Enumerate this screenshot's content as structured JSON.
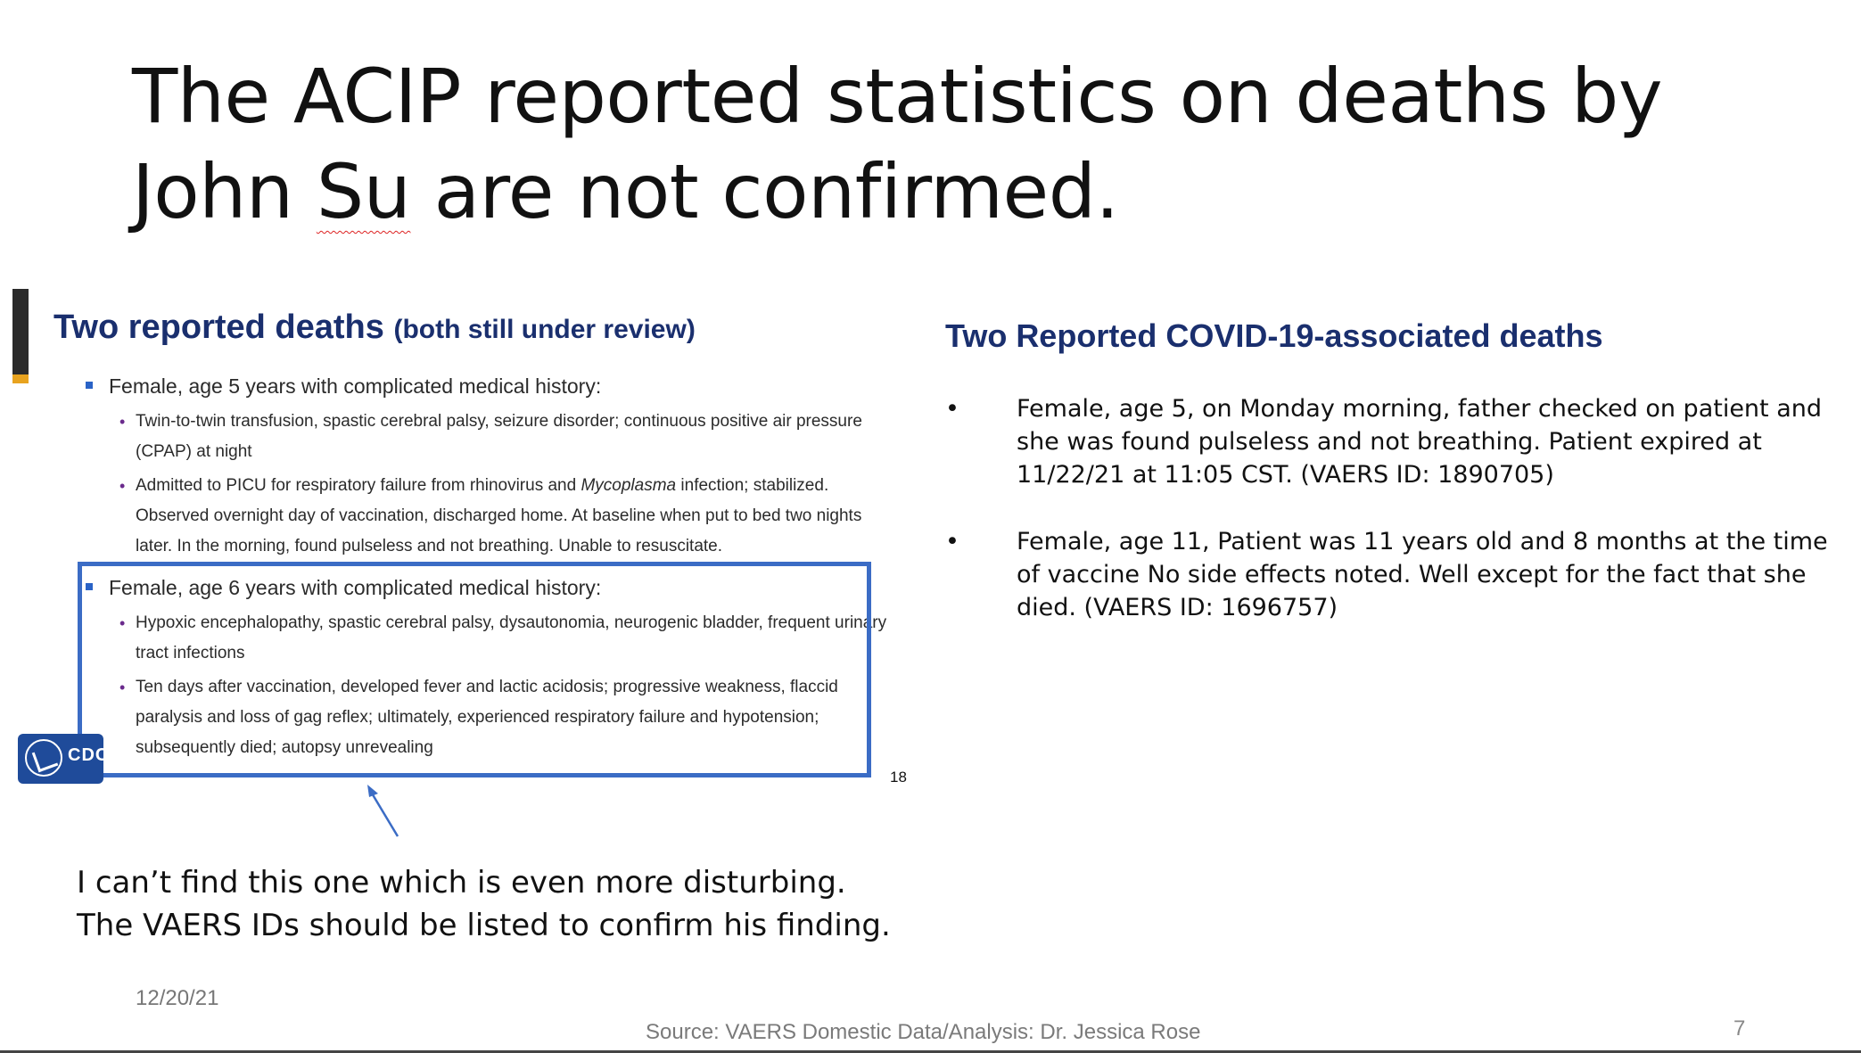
{
  "title": {
    "line1": "The ACIP reported statistics on deaths by",
    "line2_before": "John ",
    "line2_flagged": "Su",
    "line2_after": " are not confirmed."
  },
  "left_slide": {
    "heading_main": "Two reported deaths",
    "heading_sub": "(both still under review)",
    "case1": {
      "head": "Female, age 5 years with complicated medical history:",
      "item1": "Twin-to-twin transfusion, spastic cerebral palsy, seizure disorder; continuous positive air pressure (CPAP) at night",
      "item2_before": "Admitted to PICU for respiratory failure from rhinovirus and ",
      "item2_italic": "Mycoplasma",
      "item2_after": " infection; stabilized. Observed overnight day of vaccination, discharged home. At baseline when put to bed two nights later. In the morning, found pulseless and not breathing. Unable to resuscitate."
    },
    "case2": {
      "head": "Female, age 6 years with complicated medical history:",
      "item1": "Hypoxic encephalopathy, spastic cerebral palsy, dysautonomia, neurogenic bladder, frequent urinary tract infections",
      "item2": "Ten days after vaccination, developed fever and lactic acidosis; progressive weakness, flaccid paralysis and loss of gag reflex; ultimately, experienced respiratory failure and hypotension; subsequently died; autopsy unrevealing"
    },
    "logo_text": "CDC",
    "slide_number": "18",
    "bullet_glyph": "•",
    "logo_icon": "hhs-eagle-icon"
  },
  "comment": {
    "line1": "I can’t find this one which is even more disturbing.",
    "line2": "The VAERS IDs should be listed to confirm his finding."
  },
  "right": {
    "heading": "Two Reported COVID-19-associated deaths",
    "bullet_glyph": "•",
    "items": [
      "Female, age 5, on Monday morning, father checked on patient and she was found pulseless and not breathing. Patient expired at  11/22/21 at 11:05 CST. (VAERS ID: 1890705)",
      "Female, age 11, Patient was 11 years old and 8 months at the time of vaccine No side effects noted. Well except for the fact that she died. (VAERS ID: 1696757)"
    ]
  },
  "footer": {
    "date": "12/20/21",
    "source": "Source: VAERS Domestic Data/Analysis: Dr. Jessica Rose",
    "page_number": "7"
  },
  "colors": {
    "heading_blue": "#1a2f6e",
    "box_blue": "#3b6cc5",
    "accent_orange": "#e8a31f"
  }
}
